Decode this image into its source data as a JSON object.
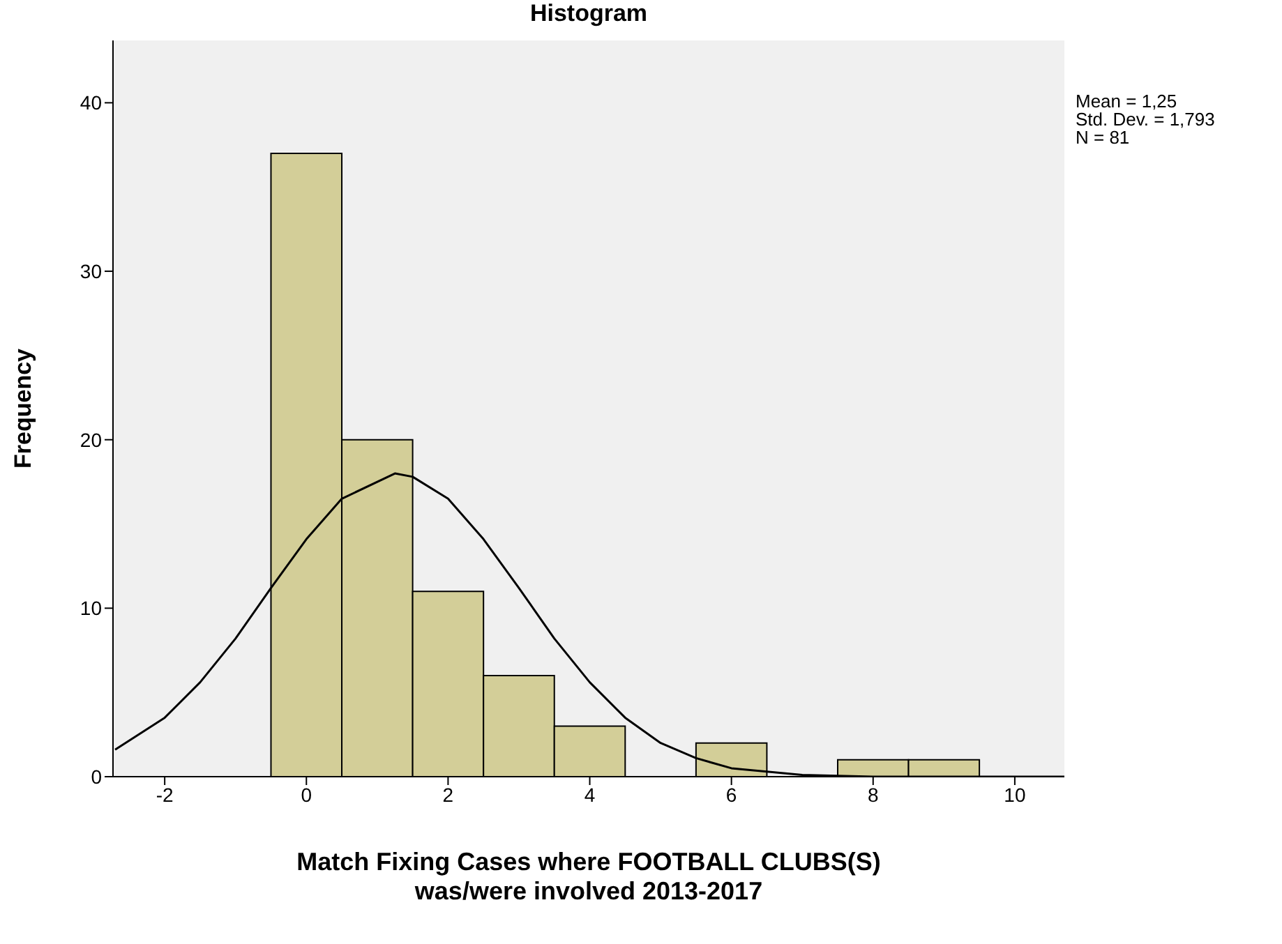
{
  "chart_data": {
    "type": "histogram",
    "title": "Histogram",
    "xlabel": "Match Fixing Cases where FOOTBALL CLUBS(S)\nwas/were involved 2013-2017",
    "ylabel": "Frequency",
    "bins": [
      -0.5,
      0.5,
      1.5,
      2.5,
      3.5,
      4.5,
      5.5,
      6.5,
      7.5,
      8.5,
      9.5
    ],
    "values": [
      37,
      20,
      11,
      6,
      3,
      0,
      2,
      0,
      1,
      1
    ],
    "color": "#d3ce98",
    "series": [
      {
        "type": "line",
        "color": "#000000",
        "x": [
          -2.7,
          -2,
          -1.5,
          -1,
          -0.5,
          0,
          0.5,
          1.25,
          1.5,
          2,
          2.5,
          3,
          3.5,
          4,
          4.5,
          5,
          5.5,
          6,
          7,
          8,
          10.7
        ],
        "values": [
          1.6,
          3.5,
          5.6,
          8.2,
          11.2,
          14.1,
          16.5,
          18,
          17.8,
          16.5,
          14.1,
          11.2,
          8.2,
          5.6,
          3.5,
          2,
          1.1,
          0.5,
          0.1,
          0,
          0
        ]
      }
    ],
    "xlim": [
      -2.73,
      10.7
    ],
    "xticks": [
      -2,
      0,
      2,
      4,
      6,
      8,
      10
    ],
    "ylim": [
      0,
      43.7
    ],
    "yticks": [
      0,
      10,
      20,
      30,
      40
    ],
    "marker": "none",
    "annotations": [
      "Mean = 1,25",
      "Std. Dev. = 1,793",
      "N = 81"
    ]
  }
}
